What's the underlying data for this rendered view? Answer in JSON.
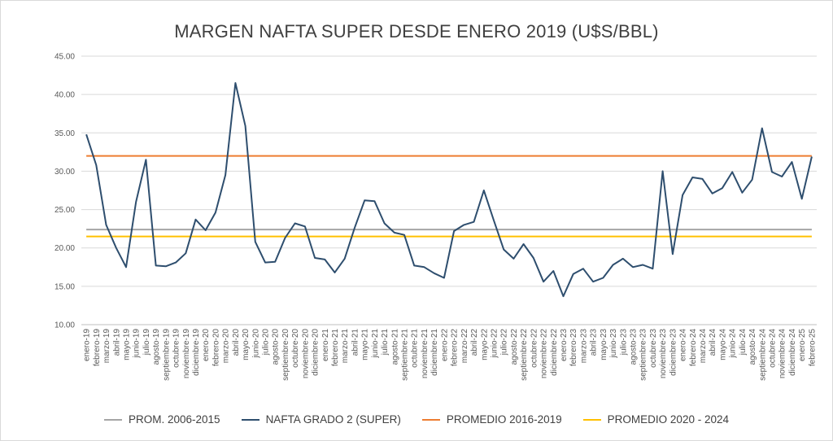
{
  "chart_data": {
    "type": "line",
    "title": "MARGEN NAFTA SUPER DESDE ENERO 2019 (U$S/BBL)",
    "ylim": [
      10,
      45
    ],
    "yticks": [
      "10.00",
      "15.00",
      "20.00",
      "25.00",
      "30.00",
      "35.00",
      "40.00",
      "45.00"
    ],
    "grid": true,
    "legend_position": "bottom",
    "categories": [
      "enero-19",
      "febrero-19",
      "marzo-19",
      "abril-19",
      "mayo-19",
      "junio-19",
      "julio-19",
      "agosto-19",
      "septiembre-19",
      "octubre-19",
      "noviembre-19",
      "diciembre-19",
      "enero-20",
      "febrero-20",
      "marzo-20",
      "abril-20",
      "mayo-20",
      "junio-20",
      "julio-20",
      "agosto-20",
      "septiembre-20",
      "octubre-20",
      "noviembre-20",
      "diciembre-20",
      "enero-21",
      "febrero-21",
      "marzo-21",
      "abril-21",
      "mayo-21",
      "junio-21",
      "julio-21",
      "agosto-21",
      "septiembre-21",
      "octubre-21",
      "noviembre-21",
      "diciembre-21",
      "enero-22",
      "febrero-22",
      "marzo-22",
      "abril-22",
      "mayo-22",
      "junio-22",
      "julio-22",
      "agosto-22",
      "septiembre-22",
      "octubre-22",
      "noviembre-22",
      "diciembre-22",
      "enero-23",
      "febrero-23",
      "marzo-23",
      "abril-23",
      "mayo-23",
      "junio-23",
      "julio-23",
      "agosto-23",
      "septiembre-23",
      "octubre-23",
      "noviembre-23",
      "diciembre-23",
      "enero-24",
      "febrero-24",
      "marzo-24",
      "abril-24",
      "mayo-24",
      "junio-24",
      "julio-24",
      "agosto-24",
      "septiembre-24",
      "octubre-24",
      "noviembre-24",
      "diciembre-24",
      "enero-25",
      "febrero-25"
    ],
    "series": [
      {
        "name": "PROM. 2006-2015",
        "color": "#a5a5a5",
        "constant": 22.4
      },
      {
        "name": "NAFTA GRADO 2 (SUPER)",
        "color": "#2e4e6e",
        "values": [
          34.8,
          30.8,
          23.0,
          20.0,
          17.5,
          26.0,
          31.5,
          17.7,
          17.6,
          18.1,
          19.3,
          23.7,
          22.3,
          24.6,
          29.5,
          41.5,
          35.9,
          20.8,
          18.1,
          18.2,
          21.3,
          23.2,
          22.8,
          18.7,
          18.5,
          16.8,
          18.6,
          22.6,
          26.2,
          26.1,
          23.2,
          22.0,
          21.7,
          17.7,
          17.5,
          16.7,
          16.1,
          22.2,
          23.0,
          23.4,
          27.5,
          23.6,
          19.8,
          18.6,
          20.5,
          18.7,
          15.6,
          17.0,
          13.7,
          16.6,
          17.3,
          15.6,
          16.1,
          17.8,
          18.6,
          17.5,
          17.8,
          17.3,
          30.0,
          19.2,
          26.9,
          29.2,
          29.0,
          27.1,
          27.8,
          29.9,
          27.2,
          28.9,
          35.6,
          29.9,
          29.3,
          31.2,
          26.4,
          31.9
        ]
      },
      {
        "name": "PROMEDIO 2016-2019",
        "color": "#ed7d31",
        "constant": 32.0
      },
      {
        "name": "PROMEDIO 2020 - 2024",
        "color": "#ffc000",
        "constant": 21.5
      }
    ]
  }
}
